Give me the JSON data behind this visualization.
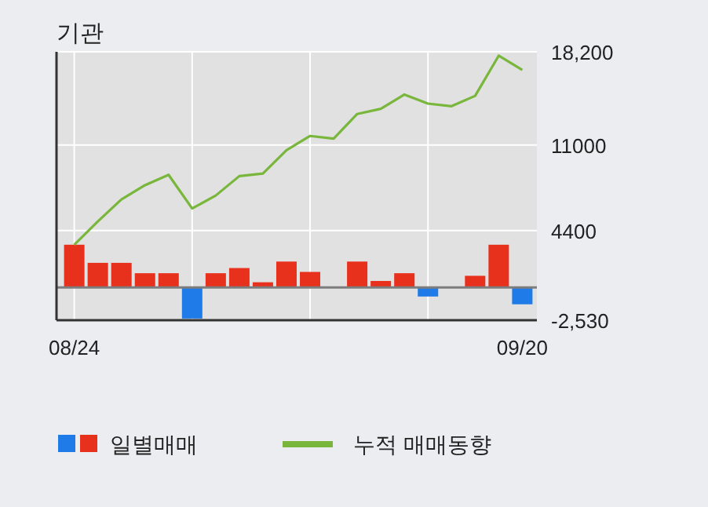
{
  "chart_data": {
    "type": "bar",
    "title": "기관",
    "categories": [
      "08/24",
      null,
      null,
      null,
      null,
      null,
      null,
      null,
      null,
      null,
      null,
      null,
      null,
      null,
      null,
      null,
      null,
      null,
      null,
      "09/20"
    ],
    "series": [
      {
        "name": "일별매매",
        "colors": [
          "#e8311d",
          "#e8311d",
          "#e8311d",
          "#e8311d",
          "#e8311d",
          "#1f7be8",
          "#e8311d",
          "#e8311d",
          "#e8311d",
          "#e8311d",
          "#e8311d",
          "#e8311d",
          "#e8311d",
          "#e8311d",
          "#e8311d",
          "#1f7be8",
          "#e8311d",
          "#e8311d",
          "#e8311d",
          "#1f7be8"
        ],
        "values": [
          3300,
          1900,
          1900,
          1100,
          1100,
          -2400,
          1100,
          1500,
          400,
          2000,
          1200,
          0,
          2000,
          500,
          1100,
          -700,
          0,
          900,
          3300,
          -1300
        ]
      },
      {
        "name": "누적 매매동향",
        "type": "line",
        "color": "#79b63c",
        "values": [
          3300,
          5100,
          6800,
          7900,
          8700,
          6100,
          7100,
          8600,
          8800,
          10600,
          11700,
          11500,
          13400,
          13800,
          14900,
          14200,
          14000,
          14800,
          17900,
          16800
        ]
      }
    ],
    "ylim": [
      -2530,
      18200
    ],
    "yticks": [
      {
        "value": 18200,
        "label": "18,200"
      },
      11000,
      4400,
      {
        "value": -2530,
        "label": "-2,530"
      }
    ],
    "grid": true,
    "legend": "bottom"
  }
}
